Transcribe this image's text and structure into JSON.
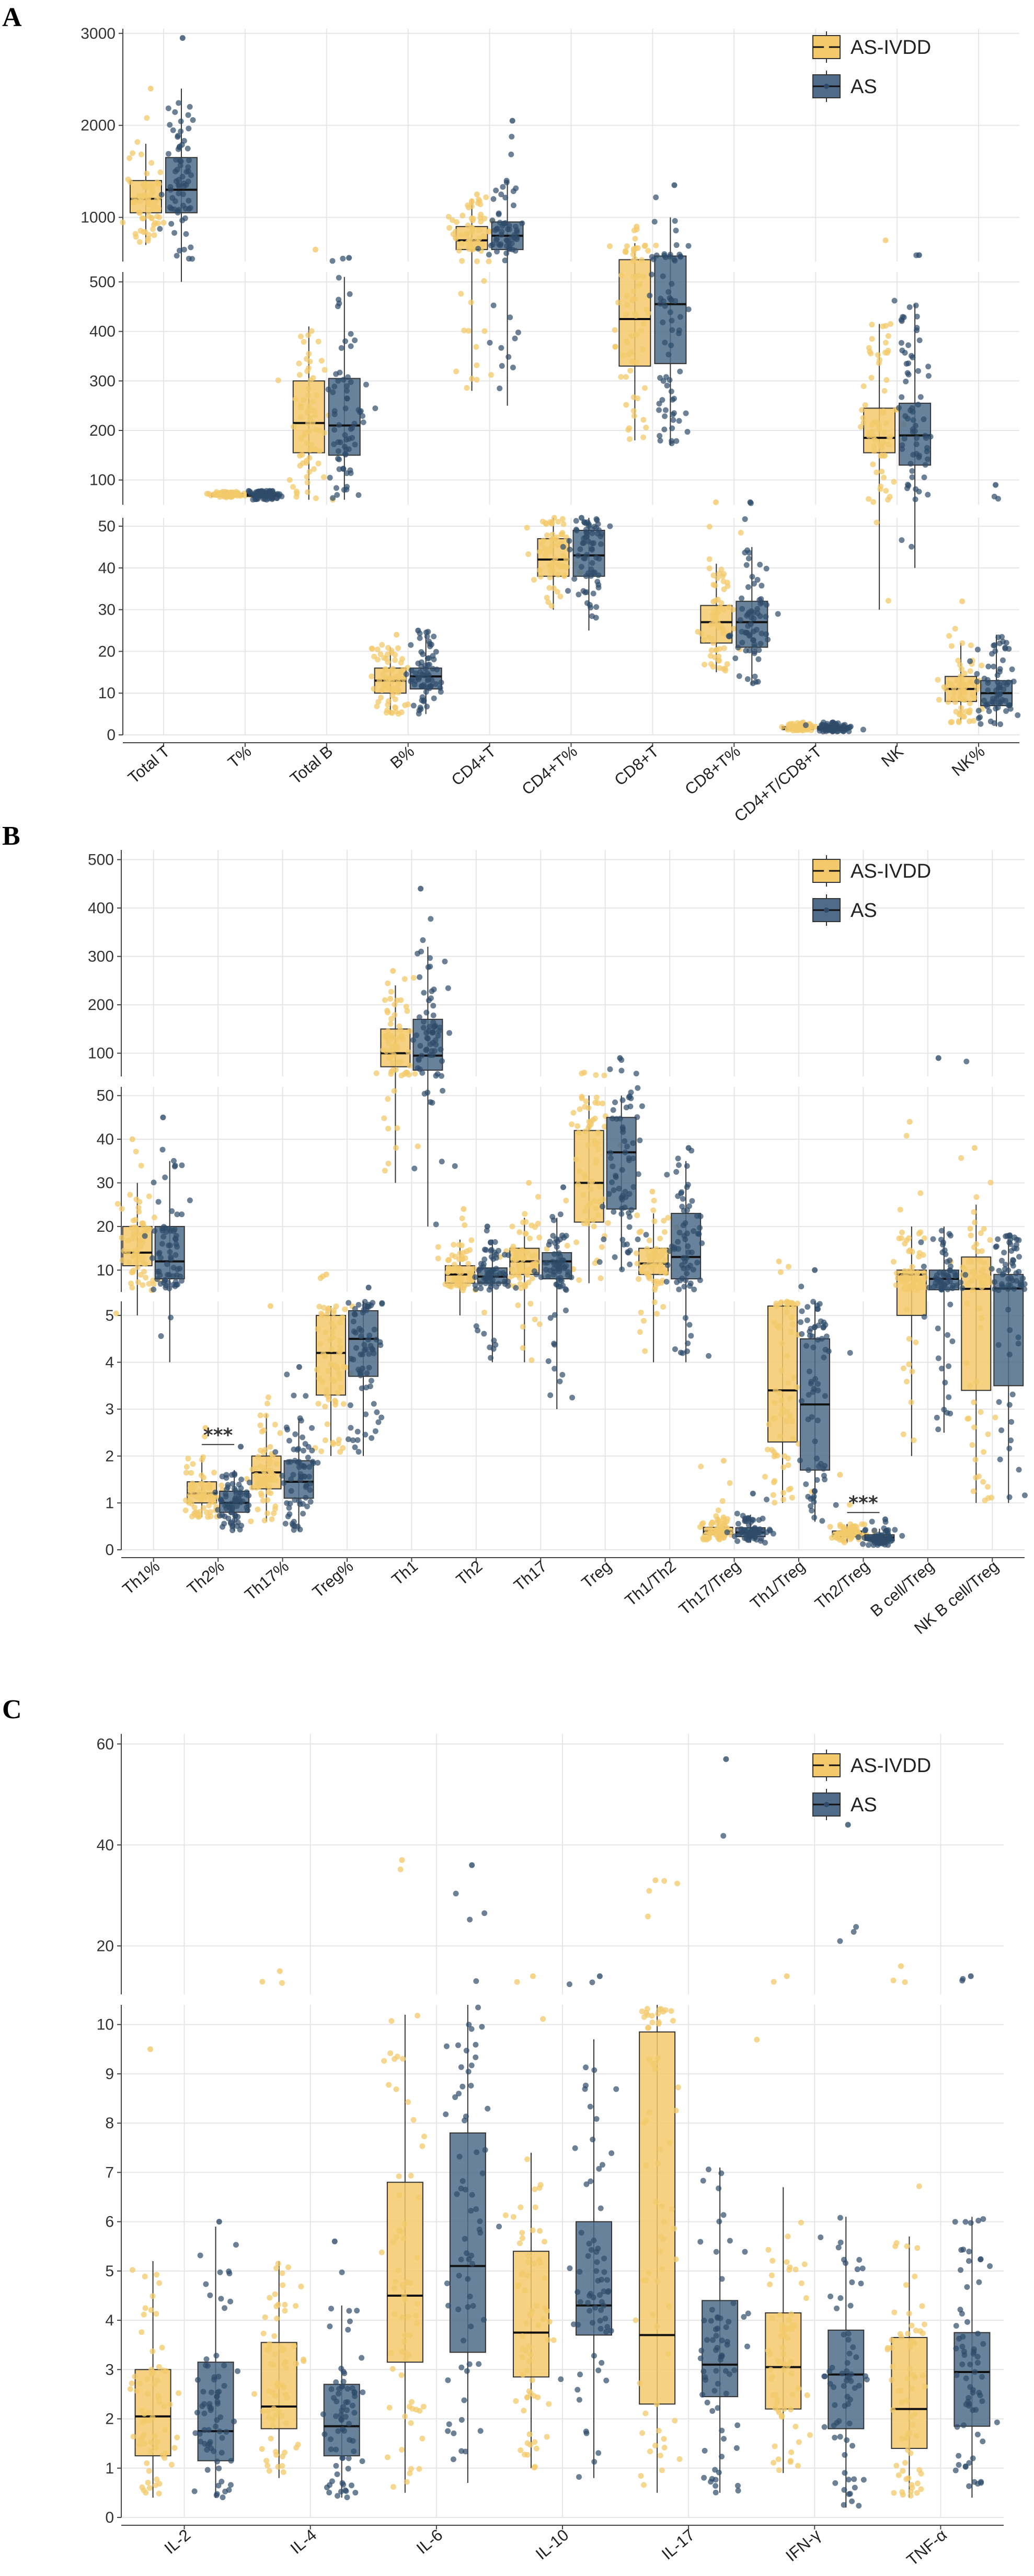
{
  "colors": {
    "AS-IVDD": "#F3C96B",
    "AS": "#4E6C89",
    "AS_point": "#2D4B69",
    "grid": "#E6E6E6"
  },
  "chart_data": [
    {
      "panel": "A",
      "type": "box",
      "legend": [
        "AS-IVDD",
        "AS"
      ],
      "legend_position": "top-right",
      "categories": [
        "Total T",
        "T%",
        "Total B",
        "B%",
        "CD4+T",
        "CD4+T%",
        "CD8+T",
        "CD8+T%",
        "CD4+T/CD8+T",
        "NK",
        "NK%"
      ],
      "segments": [
        {
          "range": [
            0,
            52
          ],
          "ticks": [
            0,
            10,
            20,
            30,
            40,
            50
          ]
        },
        {
          "range": [
            50,
            520
          ],
          "ticks": [
            100,
            200,
            300,
            400,
            500
          ]
        },
        {
          "range": [
            520,
            3050
          ],
          "ticks": [
            1000,
            2000,
            3000
          ]
        }
      ],
      "series": [
        {
          "name": "AS-IVDD",
          "boxes": [
            {
              "q1": 1050,
              "med": 1200,
              "q3": 1400,
              "lo": 700,
              "hi": 1800,
              "min": 520,
              "max": 2400
            },
            {
              "q1": 68,
              "med": 70,
              "q3": 73,
              "lo": 64,
              "hi": 76,
              "min": 50,
              "max": 76
            },
            {
              "q1": 155,
              "med": 215,
              "q3": 300,
              "lo": 60,
              "hi": 410,
              "min": 23,
              "max": 650
            },
            {
              "q1": 10,
              "med": 13,
              "q3": 16,
              "lo": 5,
              "hi": 21,
              "min": 3,
              "max": 24
            },
            {
              "q1": 650,
              "med": 750,
              "q3": 900,
              "lo": 280,
              "hi": 1200,
              "min": 280,
              "max": 1250
            },
            {
              "q1": 38,
              "med": 42,
              "q3": 47,
              "lo": 30,
              "hi": 52,
              "min": 25,
              "max": 52
            },
            {
              "q1": 330,
              "med": 425,
              "q3": 540,
              "lo": 180,
              "hi": 720,
              "min": 160,
              "max": 900
            },
            {
              "q1": 22,
              "med": 27,
              "q3": 31,
              "lo": 15,
              "hi": 41,
              "min": 5,
              "max": 55
            },
            {
              "q1": 1.3,
              "med": 1.6,
              "q3": 2.0,
              "lo": 1.0,
              "hi": 2.7,
              "min": 0.7,
              "max": 3
            },
            {
              "q1": 155,
              "med": 185,
              "q3": 245,
              "lo": 30,
              "hi": 415,
              "min": 12,
              "max": 750
            },
            {
              "q1": 8,
              "med": 11,
              "q3": 14,
              "lo": 3,
              "hi": 22,
              "min": 1,
              "max": 32
            }
          ]
        },
        {
          "name": "AS",
          "boxes": [
            {
              "q1": 1050,
              "med": 1300,
              "q3": 1650,
              "lo": 500,
              "hi": 2400,
              "min": 460,
              "max": 2950
            },
            {
              "q1": 67,
              "med": 70,
              "q3": 73,
              "lo": 60,
              "hi": 78,
              "min": 48,
              "max": 78
            },
            {
              "q1": 150,
              "med": 210,
              "q3": 305,
              "lo": 60,
              "hi": 510,
              "min": 34,
              "max": 560
            },
            {
              "q1": 11,
              "med": 14,
              "q3": 16,
              "lo": 5,
              "hi": 24,
              "min": 2,
              "max": 25
            },
            {
              "q1": 650,
              "med": 800,
              "q3": 950,
              "lo": 250,
              "hi": 1400,
              "min": 180,
              "max": 2050
            },
            {
              "q1": 38,
              "med": 43,
              "q3": 49,
              "lo": 25,
              "hi": 52,
              "min": 24,
              "max": 52
            },
            {
              "q1": 335,
              "med": 455,
              "q3": 580,
              "lo": 170,
              "hi": 1000,
              "min": 160,
              "max": 1350
            },
            {
              "q1": 21,
              "med": 27,
              "q3": 32,
              "lo": 12,
              "hi": 45,
              "min": 9,
              "max": 55
            },
            {
              "q1": 1.2,
              "med": 1.5,
              "q3": 2.0,
              "lo": 0.8,
              "hi": 2.8,
              "min": 0.7,
              "max": 3
            },
            {
              "q1": 130,
              "med": 190,
              "q3": 255,
              "lo": 40,
              "hi": 455,
              "min": 20,
              "max": 590
            },
            {
              "q1": 7,
              "med": 10,
              "q3": 13,
              "lo": 2,
              "hi": 24,
              "min": 1,
              "max": 90
            }
          ]
        }
      ]
    },
    {
      "panel": "B",
      "type": "box",
      "legend": [
        "AS-IVDD",
        "AS"
      ],
      "legend_position": "top-right",
      "categories": [
        "Th1%",
        "Th2%",
        "Th17%",
        "Treg%",
        "Th1",
        "Th2",
        "Th17",
        "Treg",
        "Th1/Th2",
        "Th17/Treg",
        "Th1/Treg",
        "Th2/Treg",
        "B cell/Treg",
        "NK B cell/Treg"
      ],
      "segments": [
        {
          "range": [
            0,
            5.3
          ],
          "ticks": [
            0,
            1,
            2,
            3,
            4,
            5
          ]
        },
        {
          "range": [
            5,
            52
          ],
          "ticks": [
            10,
            20,
            30,
            40,
            50
          ]
        },
        {
          "range": [
            52,
            520
          ],
          "ticks": [
            100,
            200,
            300,
            400,
            500
          ]
        }
      ],
      "significance": [
        {
          "category": "Th2%",
          "label": "***"
        },
        {
          "category": "Th2/Treg",
          "label": "***"
        }
      ],
      "series": [
        {
          "name": "AS-IVDD",
          "boxes": [
            {
              "q1": 11,
              "med": 14,
              "q3": 20,
              "lo": 5,
              "hi": 30,
              "min": 0.7,
              "max": 40
            },
            {
              "q1": 1.0,
              "med": 1.2,
              "q3": 1.45,
              "lo": 0.7,
              "hi": 2.0,
              "min": 0.5,
              "max": 2.6
            },
            {
              "q1": 1.3,
              "med": 1.65,
              "q3": 2.0,
              "lo": 0.6,
              "hi": 2.9,
              "min": 0.3,
              "max": 5.2
            },
            {
              "q1": 3.3,
              "med": 4.2,
              "q3": 5.0,
              "lo": 2.0,
              "hi": 5.2,
              "min": 1.5,
              "max": 9
            },
            {
              "q1": 72,
              "med": 100,
              "q3": 150,
              "lo": 30,
              "hi": 240,
              "min": 6,
              "max": 270
            },
            {
              "q1": 7,
              "med": 9,
              "q3": 11,
              "lo": 5,
              "hi": 17,
              "min": 4,
              "max": 24
            },
            {
              "q1": 9,
              "med": 12,
              "q3": 15,
              "lo": 4,
              "hi": 22,
              "min": 3,
              "max": 30
            },
            {
              "q1": 21,
              "med": 30,
              "q3": 42,
              "lo": 7,
              "hi": 50,
              "min": 7,
              "max": 60
            },
            {
              "q1": 9,
              "med": 11.5,
              "q3": 15,
              "lo": 4,
              "hi": 23,
              "min": 0.2,
              "max": 28
            },
            {
              "q1": 0.33,
              "med": 0.4,
              "q3": 0.48,
              "lo": 0.2,
              "hi": 0.7,
              "min": 0.1,
              "max": 1.9
            },
            {
              "q1": 2.3,
              "med": 3.4,
              "q3": 5.2,
              "lo": 1.0,
              "hi": 5.3,
              "min": 0.2,
              "max": 12
            },
            {
              "q1": 0.28,
              "med": 0.33,
              "q3": 0.4,
              "lo": 0.15,
              "hi": 0.55,
              "min": 0.1,
              "max": 1.6
            },
            {
              "q1": 5.0,
              "med": 9,
              "q3": 10,
              "lo": 2.0,
              "hi": 20,
              "min": 0.9,
              "max": 44
            },
            {
              "q1": 3.4,
              "med": 5.7,
              "q3": 13,
              "lo": 1.0,
              "hi": 25,
              "min": 0.8,
              "max": 38
            }
          ]
        },
        {
          "name": "AS",
          "boxes": [
            {
              "q1": 8,
              "med": 12,
              "q3": 20,
              "lo": 4,
              "hi": 35,
              "min": 3.3,
              "max": 45
            },
            {
              "q1": 0.8,
              "med": 1.0,
              "q3": 1.25,
              "lo": 0.4,
              "hi": 1.7,
              "min": 0.3,
              "max": 2.2
            },
            {
              "q1": 1.1,
              "med": 1.45,
              "q3": 1.9,
              "lo": 0.4,
              "hi": 2.8,
              "min": 0.2,
              "max": 3.9
            },
            {
              "q1": 3.7,
              "med": 4.5,
              "q3": 5.1,
              "lo": 2.0,
              "hi": 5.3,
              "min": 1.3,
              "max": 6
            },
            {
              "q1": 65,
              "med": 95,
              "q3": 170,
              "lo": 20,
              "hi": 320,
              "min": 17,
              "max": 440
            },
            {
              "q1": 7,
              "med": 8.5,
              "q3": 10.5,
              "lo": 4,
              "hi": 17,
              "min": 1.7,
              "max": 20
            },
            {
              "q1": 8,
              "med": 12,
              "q3": 14,
              "lo": 3,
              "hi": 22,
              "min": 0.7,
              "max": 29
            },
            {
              "q1": 24,
              "med": 37,
              "q3": 45,
              "lo": 10,
              "hi": 50,
              "min": 10,
              "max": 90
            },
            {
              "q1": 8,
              "med": 13,
              "q3": 23,
              "lo": 4,
              "hi": 35,
              "min": 3,
              "max": 38
            },
            {
              "q1": 0.28,
              "med": 0.37,
              "q3": 0.47,
              "lo": 0.15,
              "hi": 0.75,
              "min": 0.1,
              "max": 1.2
            },
            {
              "q1": 1.7,
              "med": 3.1,
              "q3": 4.5,
              "lo": 0.6,
              "hi": 5.3,
              "min": 0.1,
              "max": 10
            },
            {
              "q1": 0.2,
              "med": 0.26,
              "q3": 0.32,
              "lo": 0.1,
              "hi": 0.45,
              "min": 0.05,
              "max": 0.65
            },
            {
              "q1": 5.5,
              "med": 8,
              "q3": 10,
              "lo": 2.5,
              "hi": 20,
              "min": 1.8,
              "max": 90
            },
            {
              "q1": 3.5,
              "med": 5.8,
              "q3": 9,
              "lo": 1.0,
              "hi": 17,
              "min": 0.5,
              "max": 18
            }
          ]
        }
      ]
    },
    {
      "panel": "C",
      "type": "box",
      "legend": [
        "AS-IVDD",
        "AS"
      ],
      "legend_position": "top-right",
      "categories": [
        "IL-2",
        "IL-4",
        "IL-6",
        "IL-10",
        "IL-17",
        "IFN-γ",
        "TNF-α"
      ],
      "segments": [
        {
          "range": [
            0,
            10.4
          ],
          "ticks": [
            0,
            1,
            2,
            3,
            4,
            5,
            6,
            7,
            8,
            9,
            10
          ]
        },
        {
          "range": [
            10.4,
            62
          ],
          "ticks": [
            20,
            40,
            60
          ]
        }
      ],
      "series": [
        {
          "name": "AS-IVDD",
          "boxes": [
            {
              "q1": 1.25,
              "med": 2.05,
              "q3": 3.0,
              "lo": 0.4,
              "hi": 5.2,
              "min": 0.2,
              "max": 9.5
            },
            {
              "q1": 1.8,
              "med": 2.25,
              "q3": 3.55,
              "lo": 0.8,
              "hi": 5.2,
              "min": 0.7,
              "max": 15
            },
            {
              "q1": 3.15,
              "med": 4.5,
              "q3": 6.8,
              "lo": 0.5,
              "hi": 10.2,
              "min": 0.05,
              "max": 37
            },
            {
              "q1": 2.85,
              "med": 3.75,
              "q3": 5.4,
              "lo": 1.0,
              "hi": 7.4,
              "min": 0.2,
              "max": 14
            },
            {
              "q1": 2.3,
              "med": 3.7,
              "q3": 9.85,
              "lo": 0.5,
              "hi": 10.4,
              "min": 0.05,
              "max": 33
            },
            {
              "q1": 2.2,
              "med": 3.05,
              "q3": 4.15,
              "lo": 0.9,
              "hi": 6.7,
              "min": 0.5,
              "max": 14
            },
            {
              "q1": 1.4,
              "med": 2.2,
              "q3": 3.65,
              "lo": 0.4,
              "hi": 5.7,
              "min": 0.2,
              "max": 16
            }
          ]
        },
        {
          "name": "AS",
          "boxes": [
            {
              "q1": 1.15,
              "med": 1.75,
              "q3": 3.15,
              "lo": 0.4,
              "hi": 5.9,
              "min": 0.1,
              "max": 6
            },
            {
              "q1": 1.25,
              "med": 1.85,
              "q3": 2.7,
              "lo": 0.4,
              "hi": 4.3,
              "min": 0.3,
              "max": 5.6
            },
            {
              "q1": 3.35,
              "med": 5.1,
              "q3": 7.8,
              "lo": 0.7,
              "hi": 10.4,
              "min": 0.6,
              "max": 36
            },
            {
              "q1": 3.7,
              "med": 4.3,
              "q3": 6.0,
              "lo": 0.8,
              "hi": 9.7,
              "min": 0.7,
              "max": 14
            },
            {
              "q1": 2.45,
              "med": 3.1,
              "q3": 4.4,
              "lo": 0.5,
              "hi": 7.1,
              "min": 0.1,
              "max": 57
            },
            {
              "q1": 1.8,
              "med": 2.9,
              "q3": 3.8,
              "lo": 0.2,
              "hi": 6.1,
              "min": 0.1,
              "max": 44
            },
            {
              "q1": 1.85,
              "med": 2.95,
              "q3": 3.75,
              "lo": 0.4,
              "hi": 6.1,
              "min": 0.1,
              "max": 14
            }
          ]
        }
      ]
    }
  ]
}
